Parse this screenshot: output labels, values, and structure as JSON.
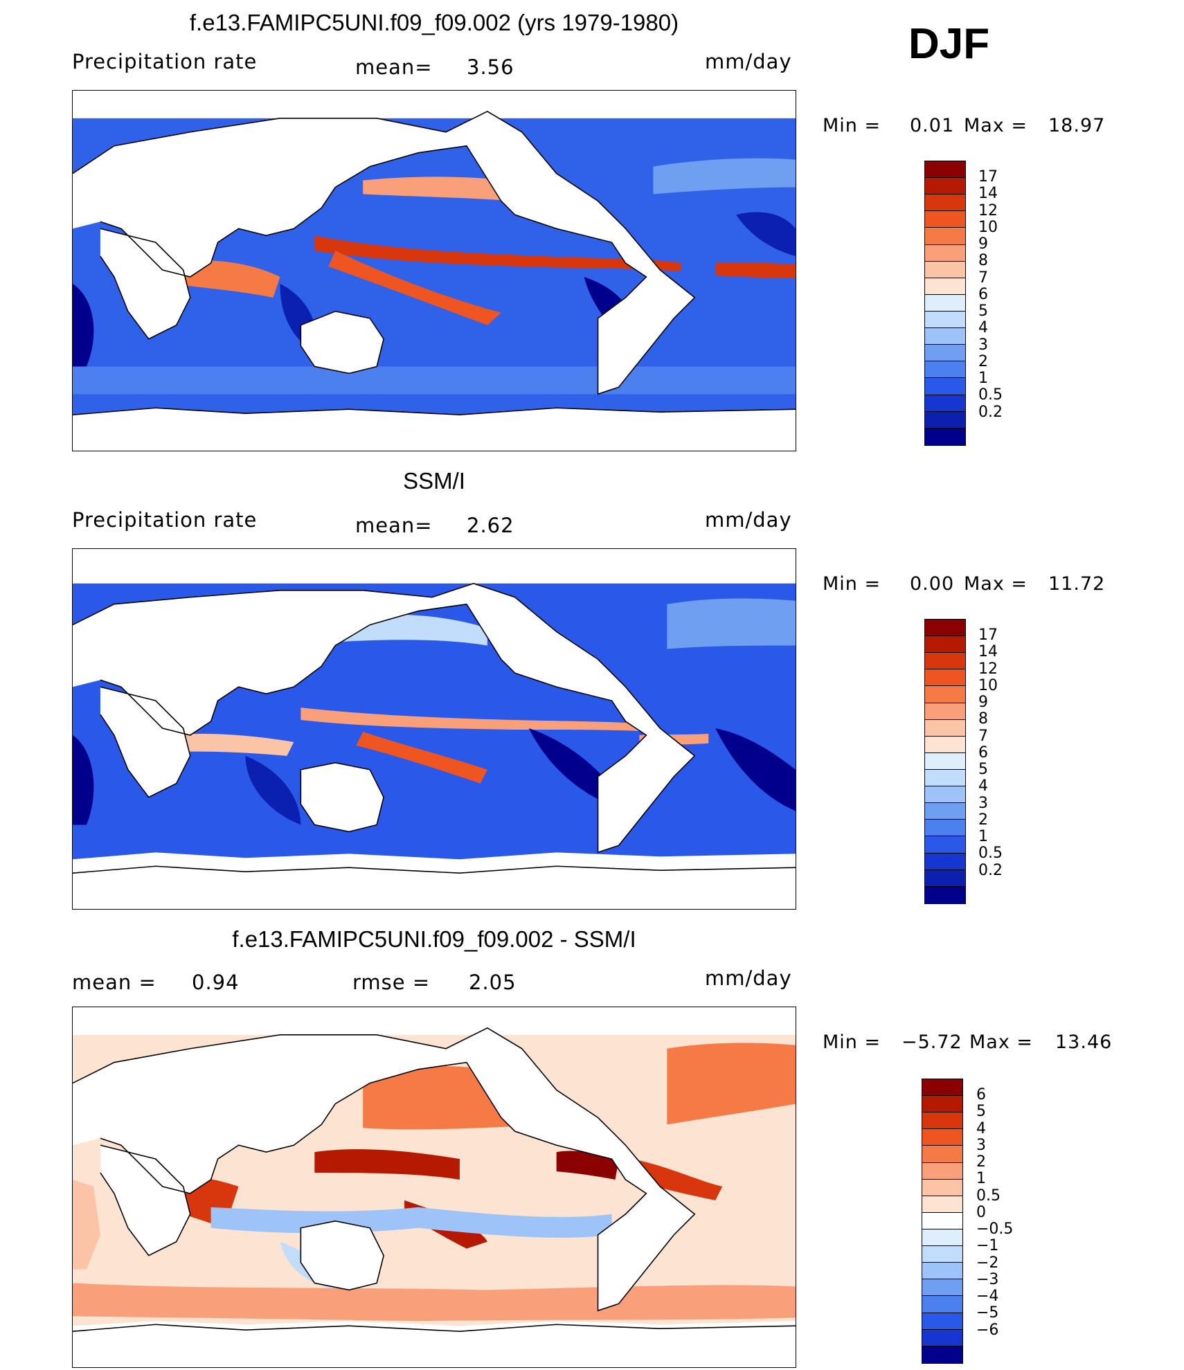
{
  "season": "DJF",
  "unit": "mm/day",
  "panels": [
    {
      "id": "model",
      "title": "f.e13.FAMIPC5UNI.f09_f09.002 (yrs 1979-1980)",
      "variable": "Precipitation rate",
      "stat_left_label": "",
      "stat_label": "mean=",
      "stat_value": "3.56",
      "min_label": "Min =",
      "min_value": "0.01",
      "max_label": "Max =",
      "max_value": "18.97",
      "colorbar": {
        "labels": [
          "17",
          "14",
          "12",
          "10",
          "9",
          "8",
          "7",
          "6",
          "5",
          "4",
          "3",
          "2",
          "1",
          "0.5",
          "0.2"
        ],
        "colors": [
          "#8b0000",
          "#b51a00",
          "#d8360c",
          "#ee5520",
          "#f57a45",
          "#f9a07a",
          "#fbc4a6",
          "#fce3d2",
          "#dfeefb",
          "#c2dcfb",
          "#9dc3f8",
          "#6f9ff0",
          "#4c80ee",
          "#2a58e8",
          "#1536d0",
          "#0b1fb1",
          "#01008c"
        ]
      }
    },
    {
      "id": "obs",
      "title": "SSM/I",
      "variable": "Precipitation rate",
      "stat_left_label": "",
      "stat_label": "mean=",
      "stat_value": "2.62",
      "min_label": "Min =",
      "min_value": "0.00",
      "max_label": "Max =",
      "max_value": "11.72",
      "colorbar": {
        "labels": [
          "17",
          "14",
          "12",
          "10",
          "9",
          "8",
          "7",
          "6",
          "5",
          "4",
          "3",
          "2",
          "1",
          "0.5",
          "0.2"
        ],
        "colors": [
          "#8b0000",
          "#b51a00",
          "#d8360c",
          "#ee5520",
          "#f57a45",
          "#f9a07a",
          "#fbc4a6",
          "#fce3d2",
          "#dfeefb",
          "#c2dcfb",
          "#9dc3f8",
          "#6f9ff0",
          "#4c80ee",
          "#2a58e8",
          "#1536d0",
          "#0b1fb1",
          "#01008c"
        ]
      }
    },
    {
      "id": "diff",
      "title": "f.e13.FAMIPC5UNI.f09_f09.002 - SSM/I",
      "variable": "",
      "stat_left_label": "mean =",
      "stat_left_value": "0.94",
      "stat_label": "rmse =",
      "stat_value": "2.05",
      "min_label": "Min =",
      "min_value": "−5.72",
      "max_label": "Max =",
      "max_value": "13.46",
      "colorbar": {
        "labels": [
          "6",
          "5",
          "4",
          "3",
          "2",
          "1",
          "0.5",
          "0",
          "−0.5",
          "−1",
          "−2",
          "−3",
          "−4",
          "−5",
          "−6"
        ],
        "colors": [
          "#8b0000",
          "#b51a00",
          "#d8360c",
          "#ee5520",
          "#f57a45",
          "#f9a07a",
          "#fbc4a6",
          "#fce3d2",
          "#ffffff",
          "#dfeefb",
          "#c2dcfb",
          "#9dc3f8",
          "#6f9ff0",
          "#4c80ee",
          "#2a58e8",
          "#1536d0",
          "#01008c"
        ]
      }
    }
  ]
}
